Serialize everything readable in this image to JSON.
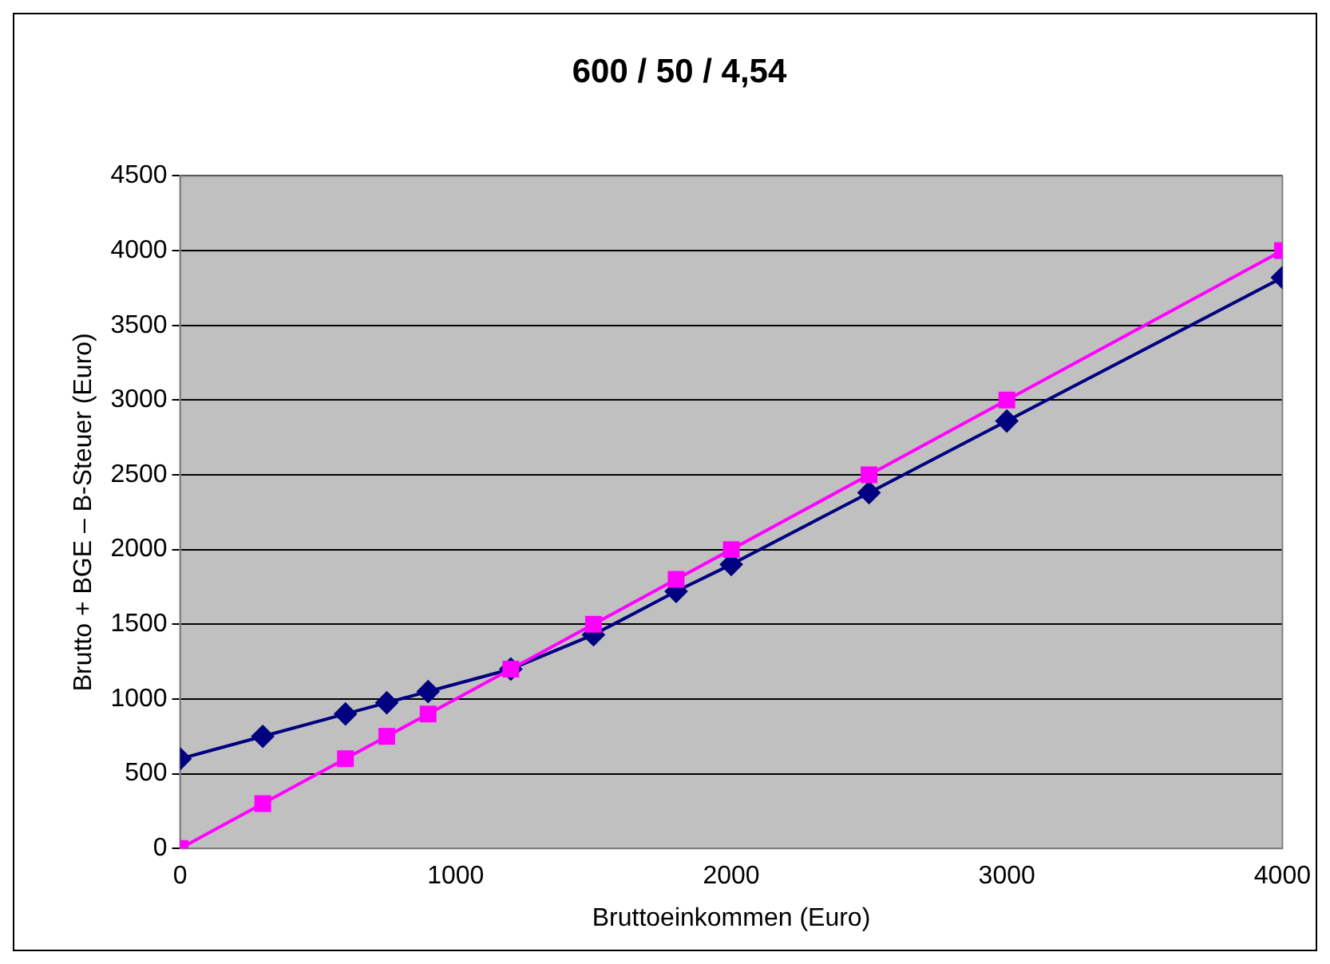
{
  "chart_data": {
    "type": "line",
    "title": "600 / 50 / 4,54",
    "xlabel": "Bruttoeinkommen (Euro)",
    "ylabel": "Brutto + BGE – B-Steuer (Euro)",
    "x": [
      0,
      300,
      600,
      750,
      900,
      1200,
      1500,
      1800,
      2000,
      2500,
      3000,
      4000
    ],
    "series": [
      {
        "color": "#000080",
        "marker": "diamond",
        "values": [
          600,
          750,
          900,
          975,
          1050,
          1200,
          1430,
          1720,
          1900,
          2380,
          2860,
          3820
        ]
      },
      {
        "color": "#ff00ff",
        "marker": "square",
        "values": [
          0,
          300,
          600,
          750,
          900,
          1200,
          1500,
          1800,
          2000,
          2500,
          3000,
          4000
        ]
      }
    ],
    "xlim": [
      0,
      4000
    ],
    "xticks": [
      0,
      1000,
      2000,
      3000,
      4000
    ],
    "ylim": [
      0,
      4500
    ],
    "yticks": [
      0,
      500,
      1000,
      1500,
      2000,
      2500,
      3000,
      3500,
      4000,
      4500
    ],
    "grid": "y",
    "legend": false,
    "line_style": "solid"
  }
}
